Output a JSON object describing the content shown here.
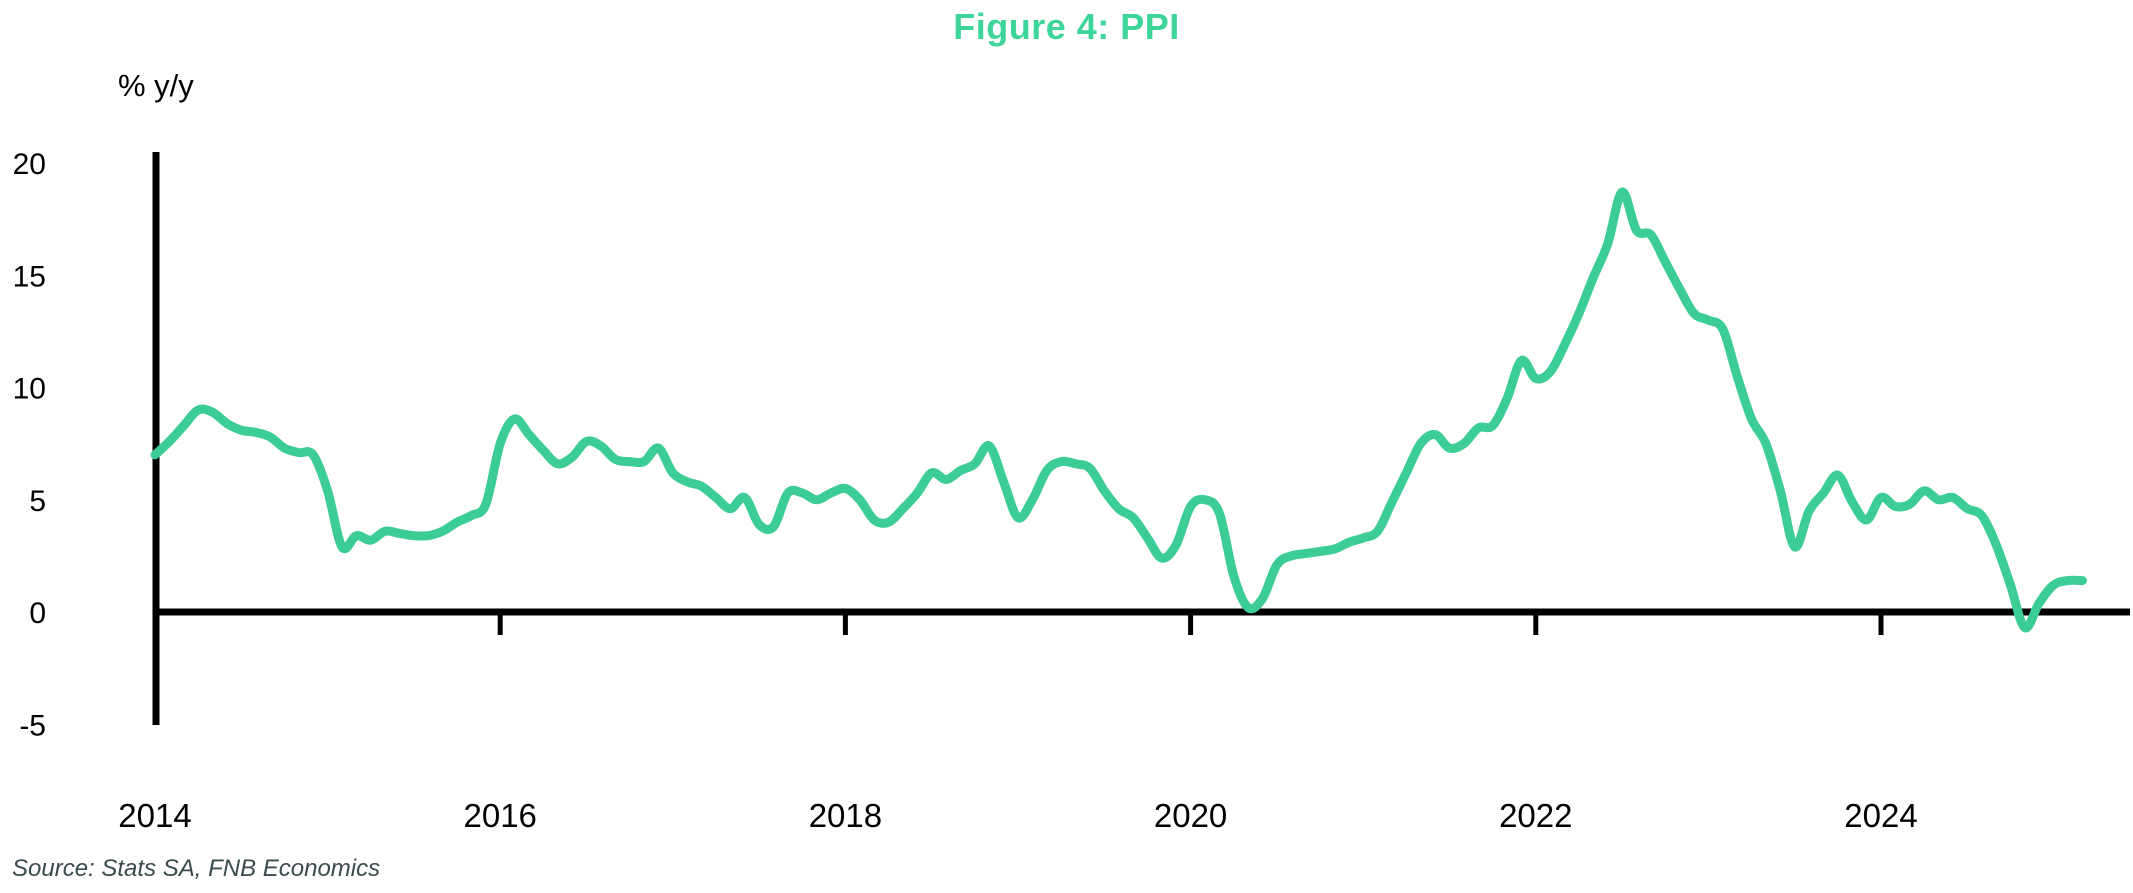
{
  "page": {
    "title": "Figure 4: PPI",
    "source_note": "Source: Stats SA, FNB Economics"
  },
  "chart_data": {
    "type": "line",
    "title": "Figure 4: PPI",
    "xlabel": "",
    "ylabel": "% y/y",
    "ylim": [
      -5,
      20
    ],
    "y_ticks": [
      20,
      15,
      10,
      5,
      0,
      -5
    ],
    "x_tick_labels": [
      "2014",
      "2016",
      "2018",
      "2020",
      "2022",
      "2024"
    ],
    "x_tick_years": [
      2014,
      2016,
      2018,
      2020,
      2022,
      2024
    ],
    "x_range_years": [
      2014.0,
      2025.25
    ],
    "grid": false,
    "legend_position": "none",
    "line_color": "#3ccc95",
    "title_color": "#3ed59a",
    "axis_color": "#000000",
    "series": [
      {
        "name": "PPI % y/y",
        "start": "2014-01",
        "frequency": "monthly",
        "values": [
          7.0,
          7.6,
          8.3,
          9.0,
          8.9,
          8.4,
          8.1,
          8.0,
          7.8,
          7.3,
          7.1,
          7.0,
          5.4,
          2.9,
          3.4,
          3.2,
          3.6,
          3.5,
          3.4,
          3.4,
          3.6,
          4.0,
          4.3,
          4.8,
          7.5,
          8.6,
          7.9,
          7.2,
          6.6,
          6.9,
          7.6,
          7.4,
          6.8,
          6.7,
          6.7,
          7.3,
          6.2,
          5.8,
          5.6,
          5.1,
          4.6,
          5.1,
          3.9,
          3.8,
          5.3,
          5.3,
          5.0,
          5.3,
          5.5,
          5.0,
          4.1,
          4.0,
          4.6,
          5.3,
          6.2,
          5.9,
          6.3,
          6.6,
          7.4,
          5.8,
          4.2,
          5.0,
          6.3,
          6.7,
          6.6,
          6.4,
          5.4,
          4.6,
          4.2,
          3.3,
          2.4,
          3.0,
          4.7,
          5.0,
          4.4,
          1.6,
          0.2,
          0.6,
          2.1,
          2.5,
          2.6,
          2.7,
          2.8,
          3.1,
          3.3,
          3.6,
          4.9,
          6.2,
          7.5,
          7.9,
          7.3,
          7.5,
          8.2,
          8.3,
          9.5,
          11.2,
          10.4,
          10.7,
          11.9,
          13.3,
          14.9,
          16.4,
          18.7,
          17.0,
          16.8,
          15.6,
          14.4,
          13.3,
          13.0,
          12.6,
          10.5,
          8.6,
          7.5,
          5.4,
          2.9,
          4.5,
          5.3,
          6.1,
          4.9,
          4.1,
          5.1,
          4.7,
          4.8,
          5.4,
          5.0,
          5.1,
          4.6,
          4.3,
          3.0,
          1.2,
          -0.7,
          0.4,
          1.2,
          1.4,
          1.4
        ]
      }
    ]
  }
}
